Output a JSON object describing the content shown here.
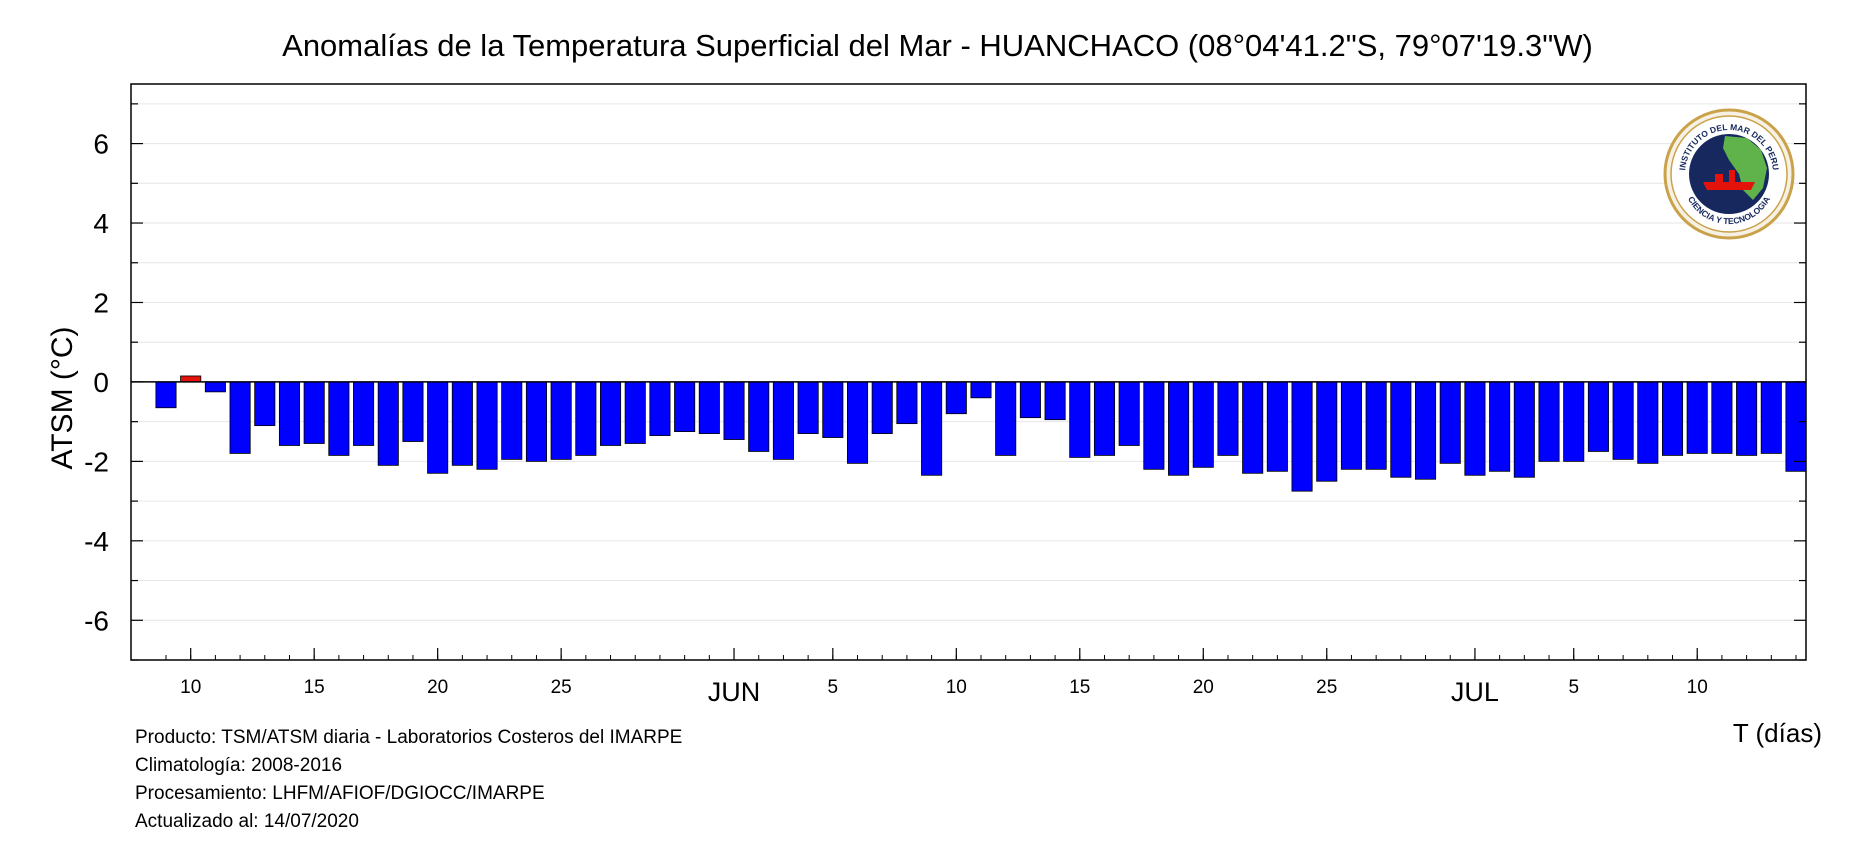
{
  "chart_data": {
    "type": "bar",
    "title": "Anomalías de la Temperatura Superficial del Mar - HUANCHACO (08°04'41.2\"S, 79°07'19.3\"W)",
    "ylabel": "ATSM (°C)",
    "xlabel": "T (días)",
    "ylim": [
      -7,
      7.5
    ],
    "yticks": [
      -6,
      -4,
      -2,
      0,
      2,
      4,
      6
    ],
    "x_start": "2020-05-09",
    "x_end": "2020-07-14",
    "xtick_labels": [
      {
        "date": "2020-05-10",
        "label": "10"
      },
      {
        "date": "2020-05-15",
        "label": "15"
      },
      {
        "date": "2020-05-20",
        "label": "20"
      },
      {
        "date": "2020-05-25",
        "label": "25"
      },
      {
        "date": "2020-06-01",
        "label": "JUN"
      },
      {
        "date": "2020-06-05",
        "label": "5"
      },
      {
        "date": "2020-06-10",
        "label": "10"
      },
      {
        "date": "2020-06-15",
        "label": "15"
      },
      {
        "date": "2020-06-20",
        "label": "20"
      },
      {
        "date": "2020-06-25",
        "label": "25"
      },
      {
        "date": "2020-07-01",
        "label": "JUL"
      },
      {
        "date": "2020-07-05",
        "label": "5"
      },
      {
        "date": "2020-07-10",
        "label": "10"
      }
    ],
    "dates": [
      "2020-05-09",
      "2020-05-10",
      "2020-05-11",
      "2020-05-12",
      "2020-05-13",
      "2020-05-14",
      "2020-05-15",
      "2020-05-16",
      "2020-05-17",
      "2020-05-18",
      "2020-05-19",
      "2020-05-20",
      "2020-05-21",
      "2020-05-22",
      "2020-05-23",
      "2020-05-24",
      "2020-05-25",
      "2020-05-26",
      "2020-05-27",
      "2020-05-28",
      "2020-05-29",
      "2020-05-30",
      "2020-05-31",
      "2020-06-01",
      "2020-06-02",
      "2020-06-03",
      "2020-06-04",
      "2020-06-05",
      "2020-06-06",
      "2020-06-07",
      "2020-06-08",
      "2020-06-09",
      "2020-06-10",
      "2020-06-11",
      "2020-06-12",
      "2020-06-13",
      "2020-06-14",
      "2020-06-15",
      "2020-06-16",
      "2020-06-17",
      "2020-06-18",
      "2020-06-19",
      "2020-06-20",
      "2020-06-21",
      "2020-06-22",
      "2020-06-23",
      "2020-06-24",
      "2020-06-25",
      "2020-06-26",
      "2020-06-27",
      "2020-06-28",
      "2020-06-29",
      "2020-06-30",
      "2020-07-01",
      "2020-07-02",
      "2020-07-03",
      "2020-07-04",
      "2020-07-05",
      "2020-07-06",
      "2020-07-07",
      "2020-07-08",
      "2020-07-09",
      "2020-07-10",
      "2020-07-11",
      "2020-07-12",
      "2020-07-13",
      "2020-07-14"
    ],
    "values": [
      -0.65,
      0.15,
      -0.25,
      -1.8,
      -1.1,
      -1.6,
      -1.55,
      -1.85,
      -1.6,
      -2.1,
      -1.5,
      -2.3,
      -2.1,
      -2.2,
      -1.95,
      -2.0,
      -1.95,
      -1.85,
      -1.6,
      -1.55,
      -1.35,
      -1.25,
      -1.3,
      -1.45,
      -1.75,
      -1.95,
      -1.3,
      -1.4,
      -2.05,
      -1.3,
      -1.05,
      -2.35,
      -0.8,
      -0.4,
      -1.85,
      -0.9,
      -0.95,
      -1.9,
      -1.85,
      -1.6,
      -2.2,
      -2.35,
      -2.15,
      -1.85,
      -2.3,
      -2.25,
      -2.75,
      -2.5,
      -2.2,
      -2.2,
      -2.4,
      -2.45,
      -2.05,
      -2.35,
      -2.25,
      -2.4,
      -2.0,
      -2.0,
      -1.75,
      -1.95,
      -2.05,
      -1.85,
      -1.8,
      -1.8,
      -1.85,
      -1.8,
      -2.25
    ],
    "colors": {
      "negative": "#0000ff",
      "positive": "#e3120b",
      "outline": "#000000",
      "grid": "#e6e6e6"
    },
    "grid": true
  },
  "footer": {
    "line1": "Producto: TSM/ATSM diaria - Laboratorios Costeros del IMARPE",
    "line2": "Climatología: 2008-2016",
    "line3": "Procesamiento: LHFM/AFIOF/DGIOCC/IMARPE",
    "line4": "Actualizado al: 14/07/2020"
  },
  "logo": {
    "top_text": "INSTITUTO DEL MAR DEL PERU",
    "bottom_text": "CIENCIA Y TECNOLOGIA",
    "icon": "imarpe-logo-icon"
  }
}
